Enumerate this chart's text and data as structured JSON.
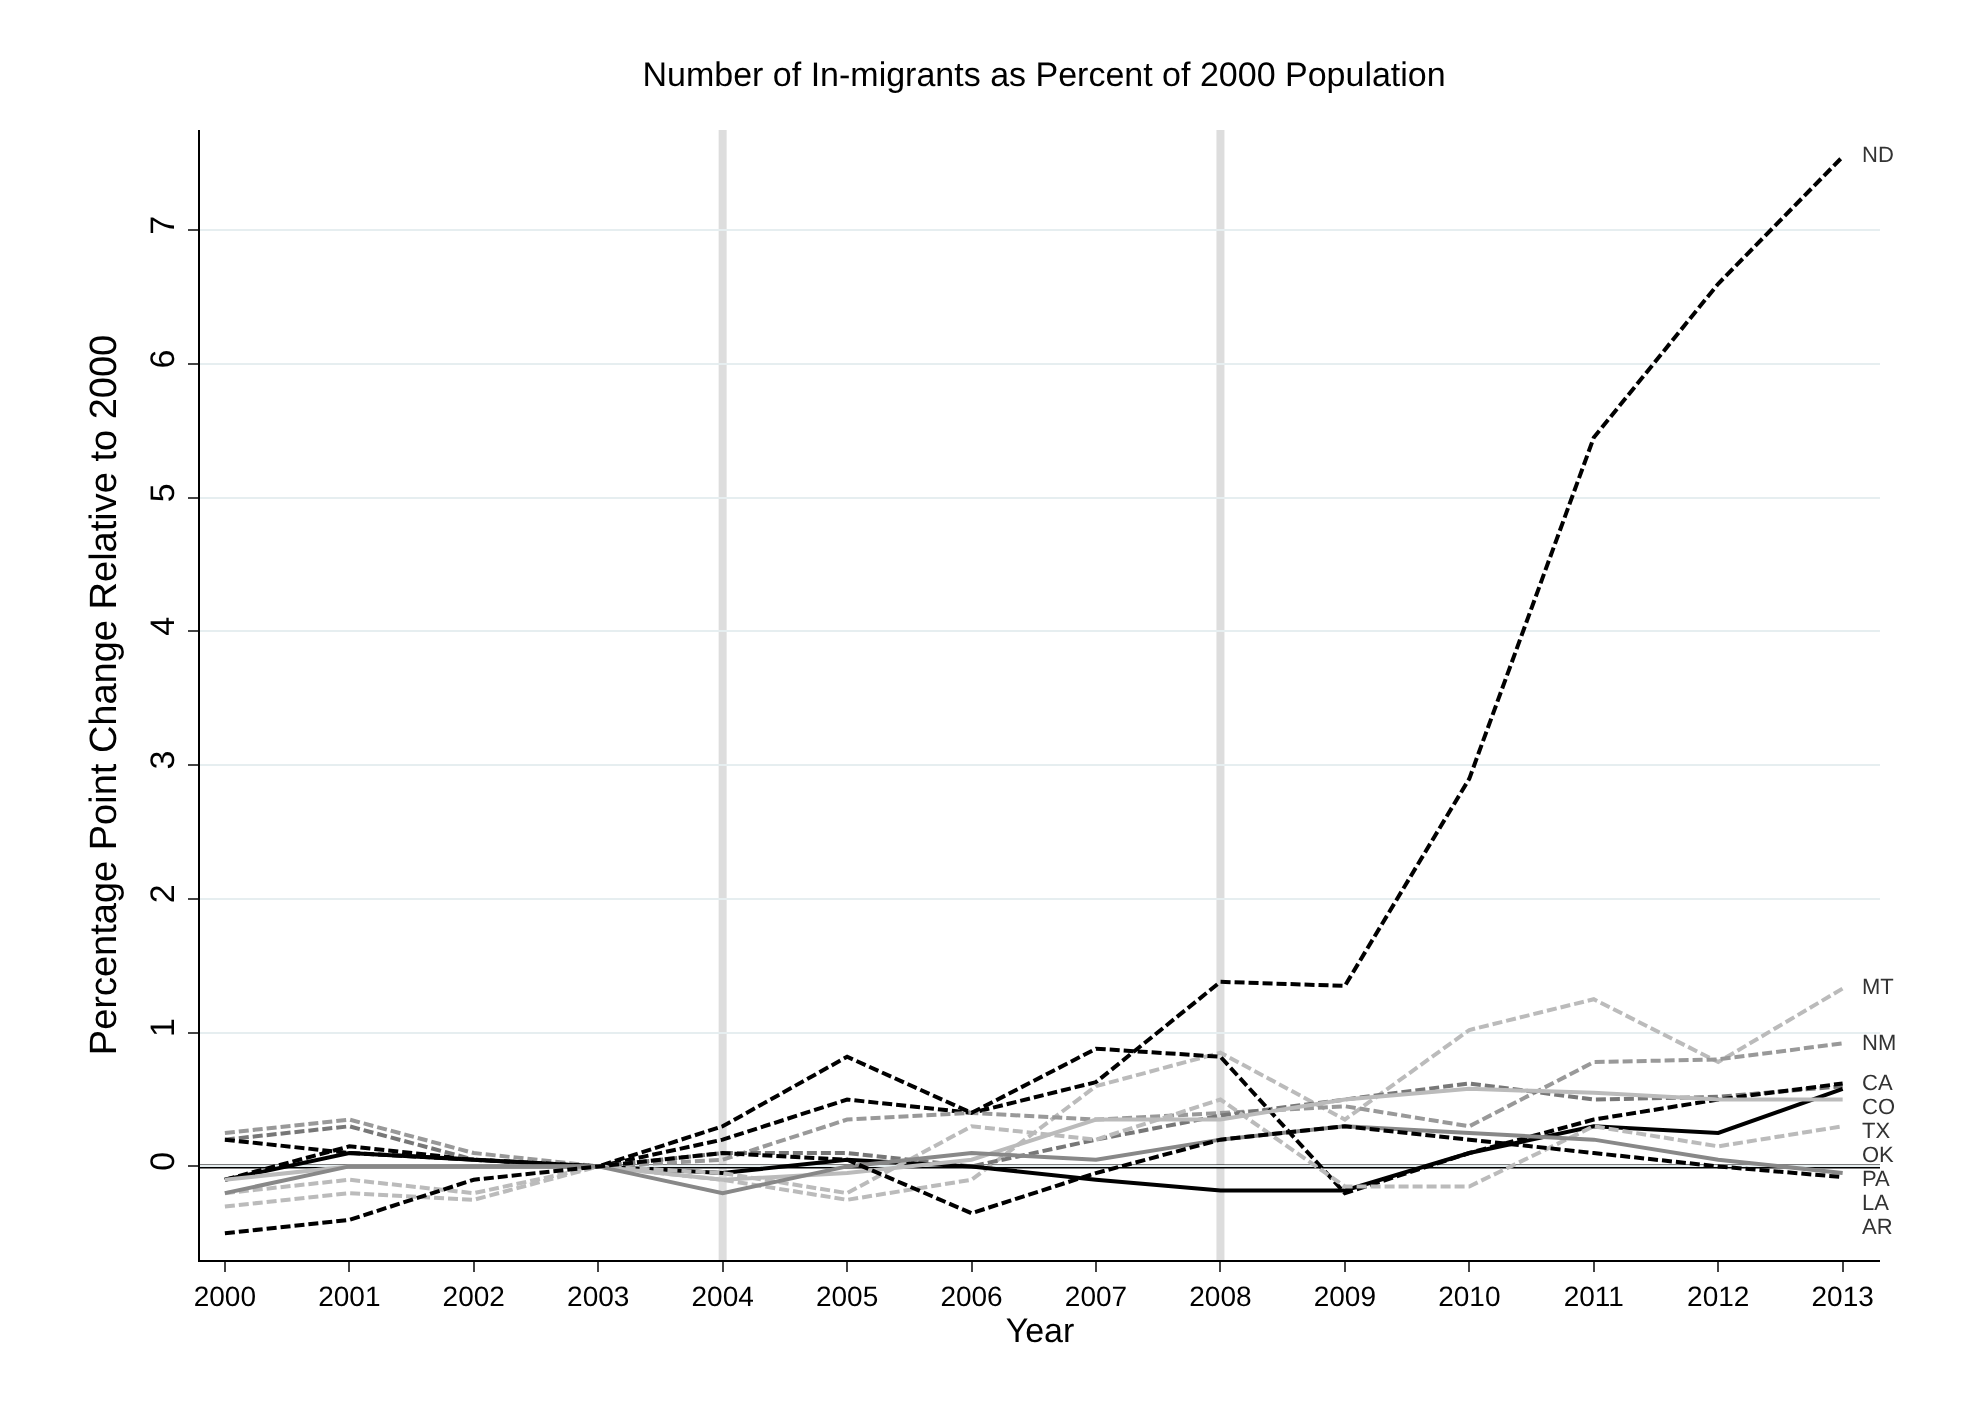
{
  "chart_data": {
    "type": "line",
    "title": "Number of In-migrants as Percent of 2000 Population",
    "xlabel": "Year",
    "ylabel": "Percentage Point Change Relative to 2000",
    "x": [
      2000,
      2001,
      2002,
      2003,
      2004,
      2005,
      2006,
      2007,
      2008,
      2009,
      2010,
      2011,
      2012,
      2013
    ],
    "xlim": [
      1999.8,
      2013.3
    ],
    "xticks": [
      2000,
      2001,
      2002,
      2003,
      2004,
      2005,
      2006,
      2007,
      2008,
      2009,
      2010,
      2011,
      2012,
      2013
    ],
    "ylim": [
      -0.7,
      7.75
    ],
    "yticks": [
      0,
      1,
      2,
      3,
      4,
      5,
      6,
      7
    ],
    "grid": "y",
    "legend": false,
    "ref_lines": [
      {
        "axis": "x",
        "value": 2004,
        "color": "#dddddd"
      },
      {
        "axis": "x",
        "value": 2008,
        "color": "#dddddd"
      },
      {
        "axis": "y",
        "value": 0,
        "color": "#000000"
      }
    ],
    "series": [
      {
        "name": "ND",
        "color": "#000000",
        "line_style": "dashed",
        "values": [
          -0.1,
          0.15,
          0.05,
          0,
          0.2,
          0.5,
          0.4,
          0.63,
          1.38,
          1.35,
          2.9,
          5.45,
          6.6,
          7.55
        ]
      },
      {
        "name": "MT",
        "color": "#bbbbbb",
        "line_style": "dashed",
        "values": [
          -0.2,
          -0.1,
          -0.2,
          0,
          -0.1,
          -0.25,
          -0.1,
          0.6,
          0.85,
          0.35,
          1.02,
          1.25,
          0.78,
          1.33
        ]
      },
      {
        "name": "NM",
        "color": "#999999",
        "line_style": "dashed",
        "values": [
          0.25,
          0.35,
          0.1,
          0,
          0.05,
          0.35,
          0.4,
          0.35,
          0.4,
          0.45,
          0.3,
          0.78,
          0.8,
          0.92
        ]
      },
      {
        "name": "CO",
        "color": "#777777",
        "line_style": "dashed",
        "values": [
          0.2,
          0.3,
          0.05,
          0,
          0.1,
          0.1,
          0,
          0.2,
          0.38,
          0.5,
          0.62,
          0.5,
          0.52,
          0.6
        ]
      },
      {
        "name": "TX",
        "color": "#000000",
        "line_style": "solid",
        "values": [
          -0.1,
          0.1,
          0.05,
          0,
          -0.05,
          0.05,
          0,
          -0.1,
          -0.18,
          -0.18,
          0.1,
          0.3,
          0.25,
          0.58
        ]
      },
      {
        "name": "CA",
        "color": "#000000",
        "line_style": "dashed",
        "values": [
          0.2,
          0.1,
          0.05,
          0,
          0.3,
          0.82,
          0.4,
          0.88,
          0.82,
          -0.2,
          0.1,
          0.35,
          0.5,
          0.62
        ]
      },
      {
        "name": "OK",
        "color": "#bbbbbb",
        "line_style": "solid",
        "values": [
          -0.1,
          0,
          0,
          0,
          -0.1,
          -0.05,
          0.05,
          0.35,
          0.35,
          0.5,
          0.58,
          0.55,
          0.5,
          0.5
        ]
      },
      {
        "name": "PA",
        "color": "#bbbbbb",
        "line_style": "dashed",
        "values": [
          -0.3,
          -0.2,
          -0.25,
          0,
          -0.05,
          -0.2,
          0.3,
          0.2,
          0.5,
          -0.15,
          -0.15,
          0.3,
          0.15,
          0.3
        ]
      },
      {
        "name": "LA",
        "color": "#888888",
        "line_style": "solid",
        "values": [
          -0.2,
          0,
          0,
          0,
          -0.2,
          0,
          0.1,
          0.05,
          0.2,
          0.3,
          0.25,
          0.2,
          0.05,
          -0.05
        ]
      },
      {
        "name": "AR",
        "color": "#000000",
        "line_style": "dashed",
        "values": [
          -0.5,
          -0.4,
          -0.1,
          0,
          0.1,
          0.05,
          -0.35,
          -0.05,
          0.2,
          0.3,
          0.2,
          0.1,
          0,
          -0.08
        ]
      }
    ]
  }
}
